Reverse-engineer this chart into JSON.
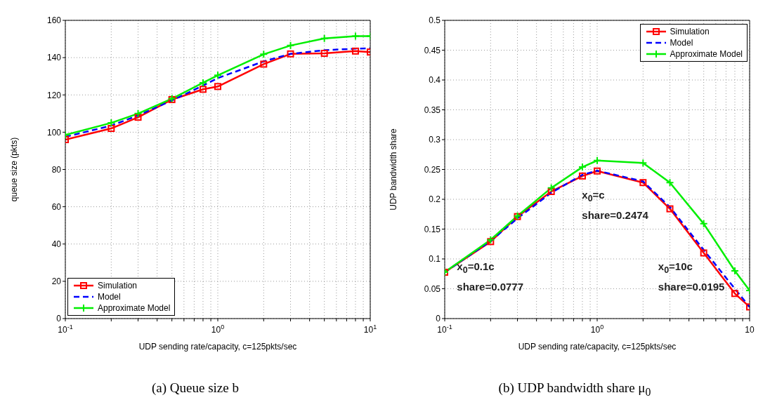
{
  "chart_data": [
    {
      "type": "line",
      "title": "(a) Queue size b",
      "xlabel": "UDP sending rate/capacity, c=125pkts/sec",
      "ylabel": "queue size (pkts)",
      "log": "x",
      "grid": true,
      "legend": "bottom left",
      "x": [
        0.1,
        0.2,
        0.3,
        0.5,
        0.8,
        1,
        2,
        3,
        5,
        8,
        10
      ],
      "xlim": [
        0.1,
        10
      ],
      "xticks": [
        {
          "value": 0.1,
          "label": "10$^{-1}$"
        },
        {
          "value": 0.2,
          "label": null
        },
        {
          "value": 0.3,
          "label": null
        },
        {
          "value": 0.4,
          "label": null
        },
        {
          "value": 0.5,
          "label": null
        },
        {
          "value": 0.6,
          "label": null
        },
        {
          "value": 0.7,
          "label": null
        },
        {
          "value": 0.8,
          "label": null
        },
        {
          "value": 0.9,
          "label": null
        },
        {
          "value": 1,
          "label": "10$^{0}$"
        },
        {
          "value": 2,
          "label": null
        },
        {
          "value": 3,
          "label": null
        },
        {
          "value": 4,
          "label": null
        },
        {
          "value": 5,
          "label": null
        },
        {
          "value": 6,
          "label": null
        },
        {
          "value": 7,
          "label": null
        },
        {
          "value": 8,
          "label": null
        },
        {
          "value": 9,
          "label": null
        },
        {
          "value": 10,
          "label": "10$^{1}$"
        }
      ],
      "ylim": [
        0,
        160
      ],
      "yticks": [
        0,
        20,
        40,
        60,
        80,
        100,
        120,
        140,
        160
      ],
      "series": [
        {
          "name": "Simulation",
          "color": "#ff0000",
          "marker": "square",
          "line_style": "solid",
          "values": [
            96,
            102,
            108,
            117.5,
            123,
            124.5,
            136.5,
            142,
            142.3,
            143.5,
            143
          ]
        },
        {
          "name": "Model",
          "color": "#0000ff",
          "marker": "none",
          "line_style": "dashed",
          "values": [
            97.5,
            103.5,
            109,
            117,
            125,
            129,
            138,
            142,
            144,
            144.8,
            145
          ]
        },
        {
          "name": "Approximate Model",
          "color": "#00ee00",
          "marker": "cross",
          "line_style": "solid",
          "values": [
            98.5,
            105,
            110,
            118,
            126.5,
            130.5,
            141.8,
            146.5,
            150.3,
            151.5,
            151.5
          ]
        }
      ]
    },
    {
      "type": "line",
      "title": "(b) UDP bandwidth share μ$_{0}$",
      "xlabel": "UDP sending rate/capacity, c=125pkts/sec",
      "ylabel": "UDP bandwidth share",
      "log": "x",
      "grid": true,
      "legend": "top right",
      "x": [
        0.1,
        0.2,
        0.3,
        0.5,
        0.8,
        1,
        2,
        3,
        5,
        8,
        10
      ],
      "xlim": [
        0.1,
        10
      ],
      "xticks": [
        {
          "value": 0.1,
          "label": "10$^{-1}$"
        },
        {
          "value": 0.2,
          "label": null
        },
        {
          "value": 0.3,
          "label": null
        },
        {
          "value": 0.4,
          "label": null
        },
        {
          "value": 0.5,
          "label": null
        },
        {
          "value": 0.6,
          "label": null
        },
        {
          "value": 0.7,
          "label": null
        },
        {
          "value": 0.8,
          "label": null
        },
        {
          "value": 0.9,
          "label": null
        },
        {
          "value": 1,
          "label": "10$^{0}$"
        },
        {
          "value": 2,
          "label": null
        },
        {
          "value": 3,
          "label": null
        },
        {
          "value": 4,
          "label": null
        },
        {
          "value": 5,
          "label": null
        },
        {
          "value": 6,
          "label": null
        },
        {
          "value": 7,
          "label": null
        },
        {
          "value": 8,
          "label": null
        },
        {
          "value": 9,
          "label": null
        },
        10
      ],
      "ylim": [
        0,
        0.5
      ],
      "yticks": [
        0,
        0.05,
        0.1,
        0.15,
        0.2,
        0.25,
        0.3,
        0.35,
        0.4,
        0.45,
        0.5
      ],
      "series": [
        {
          "name": "Simulation",
          "color": "#ff0000",
          "marker": "square",
          "line_style": "solid",
          "values": [
            0.0777,
            0.129,
            0.171,
            0.213,
            0.239,
            0.2474,
            0.228,
            0.184,
            0.11,
            0.042,
            0.0195
          ]
        },
        {
          "name": "Model",
          "color": "#0000ff",
          "marker": "none",
          "line_style": "dashed",
          "values": [
            0.0777,
            0.13,
            0.168,
            0.211,
            0.241,
            0.248,
            0.23,
            0.187,
            0.115,
            0.05,
            0.0195
          ]
        },
        {
          "name": "Approximate Model",
          "color": "#00ee00",
          "marker": "cross",
          "line_style": "solid",
          "values": [
            0.078,
            0.132,
            0.172,
            0.219,
            0.254,
            0.265,
            0.261,
            0.228,
            0.159,
            0.08,
            0.047
          ]
        }
      ],
      "annotations": [
        "x$_{0}$=0.1c\nshare=0.0777",
        "x$_{0}$=c\nshare=0.2474",
        "x$_{0}$=10c\nshare=0.0195"
      ]
    }
  ]
}
